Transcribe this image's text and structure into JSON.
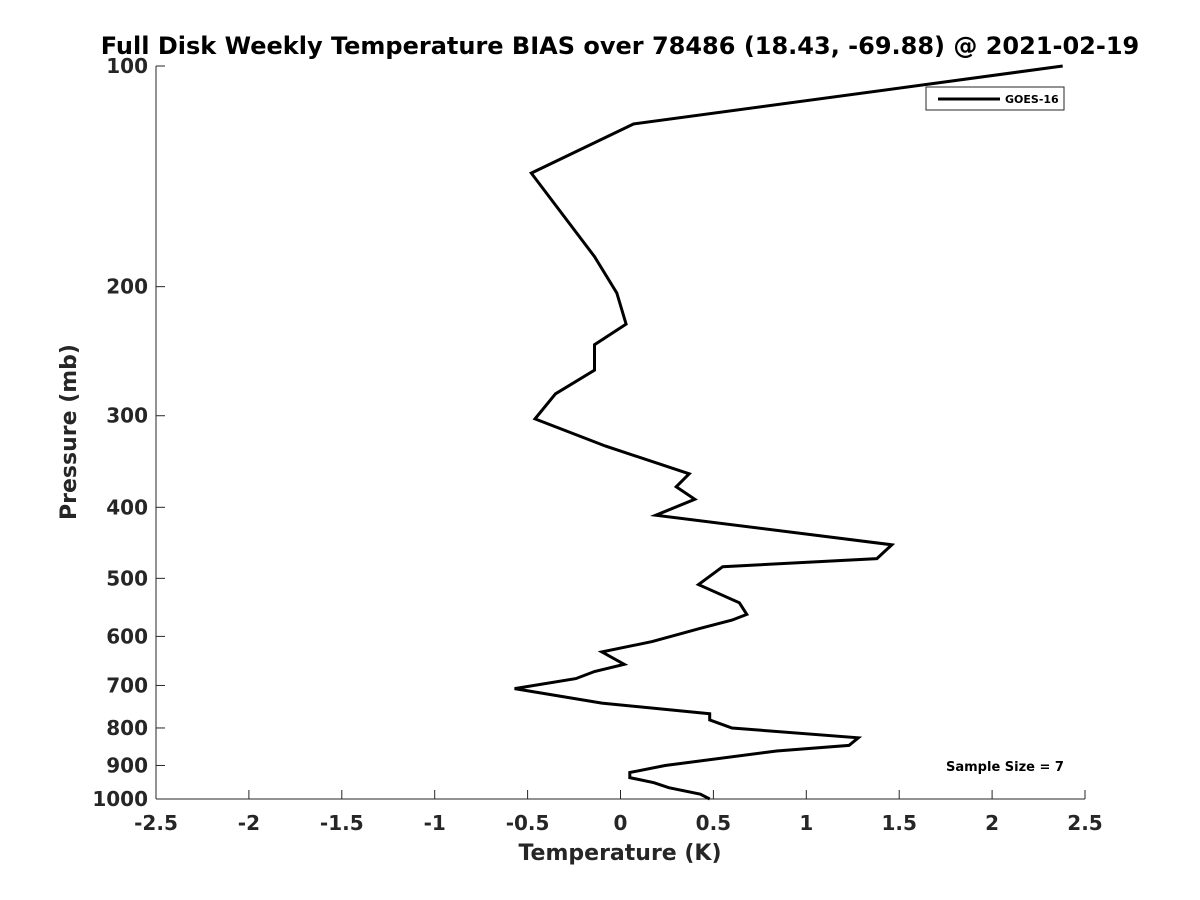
{
  "chart_data": {
    "type": "line",
    "title": "Full Disk Weekly Temperature BIAS over 78486 (18.43, -69.88) @ 2021-02-19",
    "xlabel": "Temperature (K)",
    "ylabel": "Pressure (mb)",
    "xlim": [
      -2.5,
      2.5
    ],
    "ylim": [
      100,
      1000
    ],
    "yscale": "log",
    "y_reversed": true,
    "xticks": [
      "-2.5",
      "-2",
      "-1.5",
      "-1",
      "-0.5",
      "0",
      "0.5",
      "1",
      "1.5",
      "2",
      "2.5"
    ],
    "xtick_values": [
      -2.5,
      -2,
      -1.5,
      -1,
      -0.5,
      0,
      0.5,
      1,
      1.5,
      2,
      2.5
    ],
    "yticks": [
      "100",
      "200",
      "300",
      "400",
      "500",
      "600",
      "700",
      "800",
      "900",
      "1000"
    ],
    "ytick_values": [
      100,
      200,
      300,
      400,
      500,
      600,
      700,
      800,
      900,
      1000
    ],
    "grid": false,
    "legend_position": "top-right",
    "annotation": "Sample Size = 7",
    "series": [
      {
        "name": "GOES-16",
        "color": "#000000",
        "points": [
          [
            2.38,
            100
          ],
          [
            0.07,
            120
          ],
          [
            -0.48,
            140
          ],
          [
            -0.14,
            182
          ],
          [
            -0.02,
            204
          ],
          [
            0.03,
            225
          ],
          [
            -0.14,
            240
          ],
          [
            -0.14,
            260
          ],
          [
            -0.35,
            280
          ],
          [
            -0.46,
            303
          ],
          [
            -0.08,
            330
          ],
          [
            0.37,
            360
          ],
          [
            0.3,
            375
          ],
          [
            0.4,
            390
          ],
          [
            0.19,
            410
          ],
          [
            1.46,
            450
          ],
          [
            1.38,
            470
          ],
          [
            0.55,
            482
          ],
          [
            0.42,
            510
          ],
          [
            0.64,
            540
          ],
          [
            0.68,
            560
          ],
          [
            0.6,
            570
          ],
          [
            0.43,
            585
          ],
          [
            0.17,
            610
          ],
          [
            -0.1,
            630
          ],
          [
            0.02,
            655
          ],
          [
            -0.14,
            670
          ],
          [
            -0.24,
            685
          ],
          [
            -0.57,
            707
          ],
          [
            -0.1,
            740
          ],
          [
            0.48,
            765
          ],
          [
            0.48,
            780
          ],
          [
            0.6,
            800
          ],
          [
            1.28,
            825
          ],
          [
            1.23,
            845
          ],
          [
            0.84,
            860
          ],
          [
            0.24,
            900
          ],
          [
            0.05,
            920
          ],
          [
            0.05,
            935
          ],
          [
            0.18,
            950
          ],
          [
            0.26,
            965
          ],
          [
            0.43,
            985
          ],
          [
            0.48,
            1000
          ]
        ]
      }
    ]
  }
}
